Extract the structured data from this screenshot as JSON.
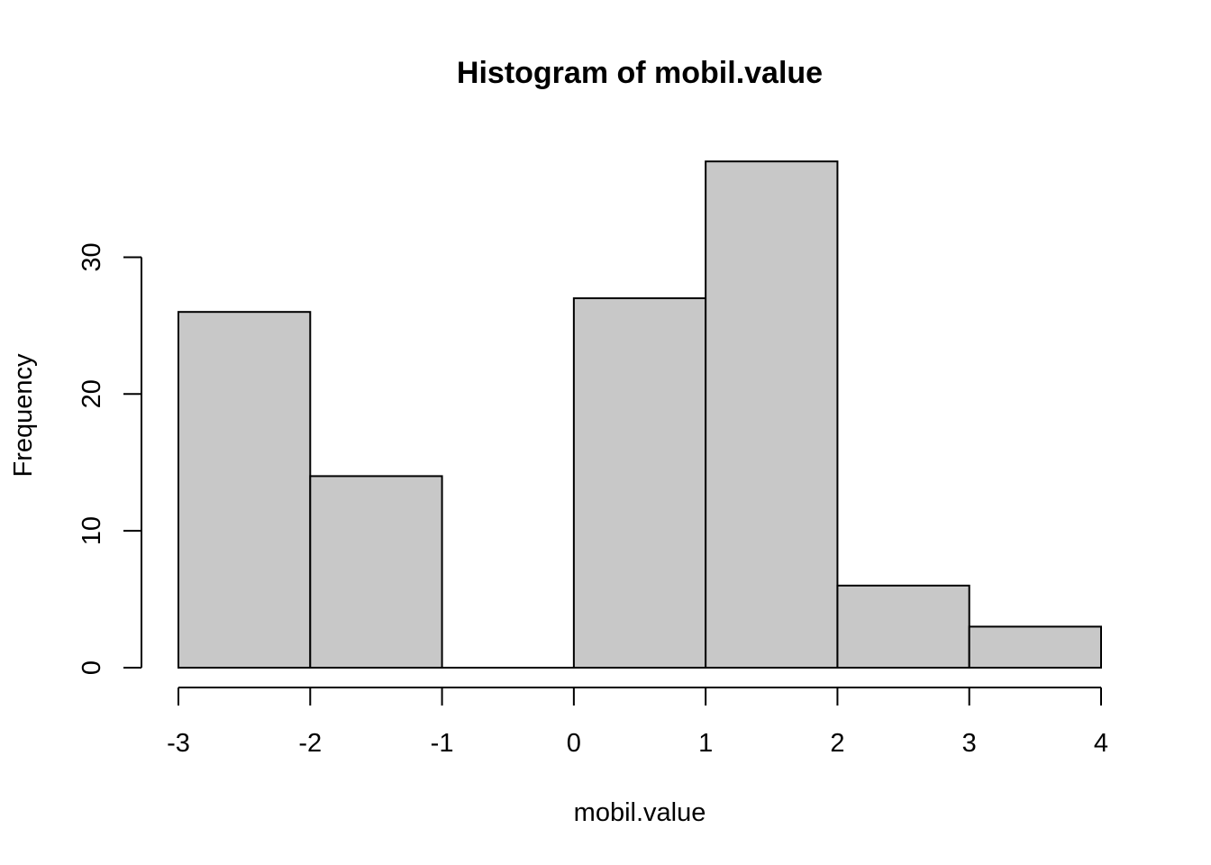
{
  "chart_data": {
    "type": "bar",
    "title": "Histogram of mobil.value",
    "xlabel": "mobil.value",
    "ylabel": "Frequency",
    "bins": [
      {
        "start": -3,
        "end": -2,
        "count": 26
      },
      {
        "start": -2,
        "end": -1,
        "count": 14
      },
      {
        "start": -1,
        "end": 0,
        "count": 0
      },
      {
        "start": 0,
        "end": 1,
        "count": 27
      },
      {
        "start": 1,
        "end": 2,
        "count": 37
      },
      {
        "start": 2,
        "end": 3,
        "count": 6
      },
      {
        "start": 3,
        "end": 4,
        "count": 3
      }
    ],
    "xticks": [
      -3,
      -2,
      -1,
      0,
      1,
      2,
      3,
      4
    ],
    "xtick_labels": [
      "-3",
      "-2",
      "-1",
      "0",
      "1",
      "2",
      "3",
      "4"
    ],
    "yticks": [
      0,
      10,
      20,
      30
    ],
    "ytick_labels": [
      "0",
      "10",
      "20",
      "30"
    ],
    "xlim": [
      -3,
      4
    ],
    "ylim": [
      0,
      37
    ],
    "grid": false,
    "bar_fill": "#c8c8c8",
    "bar_stroke": "#000000"
  }
}
